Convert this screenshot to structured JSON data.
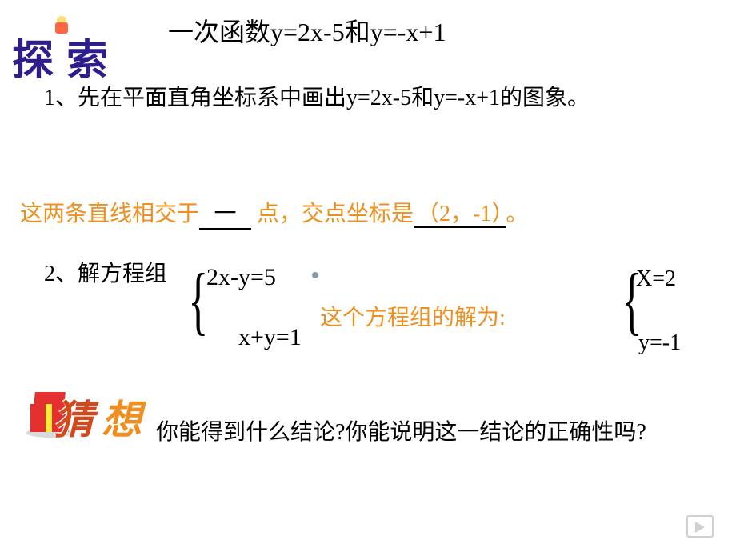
{
  "title": "一次函数y=2x-5和y=-x+1",
  "explore_label": {
    "char1": "探",
    "char2": "索"
  },
  "item1": "1、先在平面直角坐标系中画出y=2x-5和y=-x+1的图象。",
  "intersection": {
    "prefix": "这两条直线相交于",
    "blank_value": "一",
    "mid": " 点，交点坐标是",
    "coord": "（2，-1）",
    "period": "。"
  },
  "item2": "2、解方程组",
  "equations": {
    "eq1": "2x-y=5",
    "eq2": "x+y=1"
  },
  "solution_text": "这个方程组的解为:",
  "solution": {
    "x": "X=2",
    "y": "y=-1"
  },
  "guess_label": {
    "char1": "猜",
    "char2": "想"
  },
  "conclusion": "你能得到什么结论?你能说明这一结论的正确性吗?",
  "colors": {
    "orange": "#ef8f1f",
    "black": "#000000",
    "purple": "#2e1e8c",
    "red": "#e53030",
    "dark_orange": "#d04a1e"
  }
}
